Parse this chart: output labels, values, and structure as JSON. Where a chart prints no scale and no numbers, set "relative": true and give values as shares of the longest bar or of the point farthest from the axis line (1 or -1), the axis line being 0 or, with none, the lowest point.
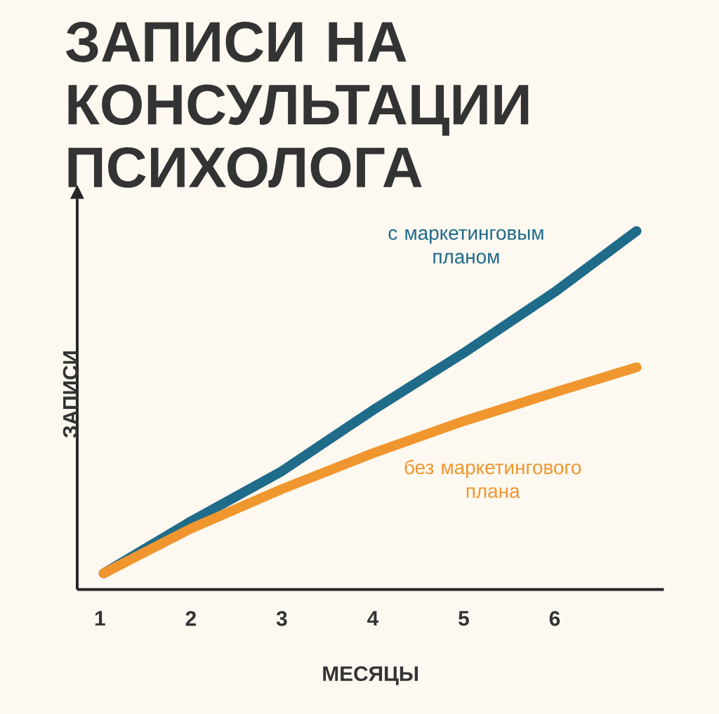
{
  "chart_data": {
    "type": "line",
    "title": "ЗАПИСИ НА КОНСУЛЬТАЦИИ ПСИХОЛОГА",
    "xlabel": "МЕСЯЦЫ",
    "ylabel": "ЗАПИСИ",
    "relative": true,
    "xlim": [
      0.75,
      7.2
    ],
    "xticks": [
      1,
      2,
      3,
      4,
      5,
      6
    ],
    "marker": "none",
    "line_style": "solid",
    "series": [
      {
        "name": "с маркетинговым планом",
        "color": "#1f6b8a",
        "x": [
          1.04,
          2,
          3,
          4,
          5,
          6,
          6.9
        ],
        "values": [
          0.045,
          0.19,
          0.33,
          0.5,
          0.66,
          0.83,
          1
        ]
      },
      {
        "name": "без маркетингового плана",
        "color": "#f0962e",
        "x": [
          1.04,
          2,
          3,
          4,
          5,
          6,
          6.9
        ],
        "values": [
          0.045,
          0.17,
          0.28,
          0.38,
          0.47,
          0.55,
          0.62
        ]
      }
    ]
  }
}
